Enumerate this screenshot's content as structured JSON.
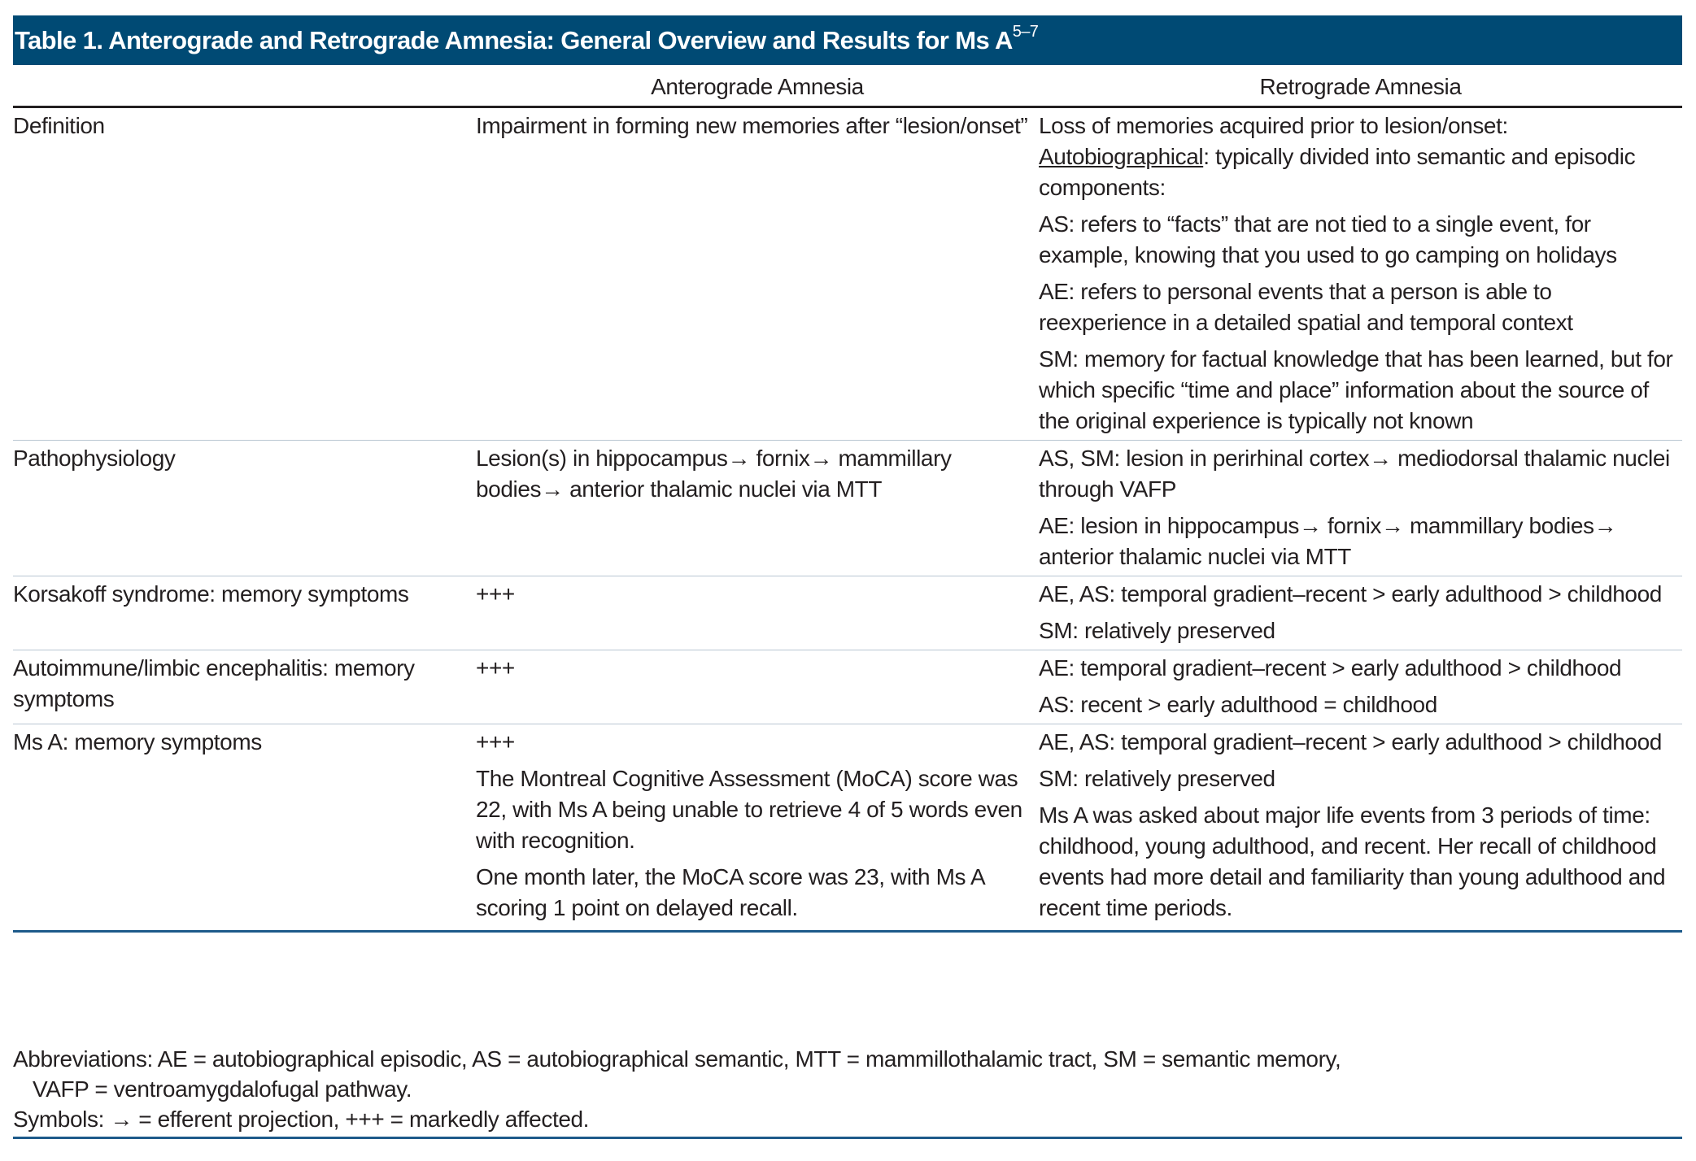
{
  "title": {
    "text": "Table 1. Anterograde and Retrograde Amnesia: General Overview and Results for Ms A",
    "superscript": "5–7"
  },
  "columns": [
    "",
    "Anterograde Amnesia",
    "Retrograde Amnesia"
  ],
  "rows": [
    {
      "label": "Definition",
      "anterograde": [
        "Impairment in forming new memories after “lesion/onset”"
      ],
      "retrograde": {
        "intro": "Loss of memories acquired prior to lesion/onset:",
        "underlined": "Autobiographical",
        "intro_rest": ": typically divided into semantic and episodic components:",
        "items": [
          "AS: refers to “facts” that are not tied to a single event, for example, knowing that you used to go camping on holidays",
          "AE: refers to personal events that a person is able to reexperience in a detailed spatial and temporal context",
          "SM: memory for factual knowledge that has been learned, but for which specific “time and place” information about the source of the original experience is typically not known"
        ]
      }
    },
    {
      "label": "Pathophysiology",
      "anterograde": [
        "Lesion(s) in hippocampus→ fornix→ mammillary bodies→ anterior thalamic nuclei via MTT"
      ],
      "retrograde": [
        "AS, SM: lesion in perirhinal cortex→ mediodorsal thalamic nuclei through VAFP",
        "AE: lesion in hippocampus→ fornix→ mammillary bodies→ anterior thalamic nuclei via MTT"
      ]
    },
    {
      "label": "Korsakoff syndrome: memory symptoms",
      "anterograde": [
        "+++"
      ],
      "retrograde": [
        "AE, AS: temporal gradient–recent > early adulthood > childhood",
        "SM: relatively preserved"
      ]
    },
    {
      "label": "Autoimmune/limbic encephalitis: memory symptoms",
      "anterograde": [
        "+++"
      ],
      "retrograde": [
        "AE: temporal gradient–recent > early adulthood > childhood",
        "AS: recent > early adulthood = childhood"
      ]
    },
    {
      "label": "Ms A: memory symptoms",
      "anterograde": [
        "+++",
        "The Montreal Cognitive Assessment (MoCA) score was 22, with Ms A being unable to retrieve 4 of 5 words even with recognition.",
        "One month later, the MoCA score was 23, with Ms A scoring 1 point on delayed recall."
      ],
      "retrograde": [
        "AE, AS: temporal gradient–recent > early adulthood > childhood",
        "SM: relatively preserved",
        "Ms A was asked about major life events from 3 periods of time: childhood, young adulthood, and recent. Her recall of childhood events had more detail and familiarity than young adulthood and recent time periods."
      ]
    }
  ],
  "footnotes": {
    "abbreviations": "Abbreviations: AE = autobiographical episodic, AS = autobiographical semantic, MTT = mammillothalamic tract, SM = semantic memory,",
    "abbreviations_cont": "VAFP = ventroamygdalofugal pathway.",
    "symbols": "Symbols: → = efferent projection, +++ = markedly affected."
  },
  "colors": {
    "title_bg": "#004a74",
    "rule": "#1d5a8a",
    "row_divider": "#b9c6d2"
  }
}
